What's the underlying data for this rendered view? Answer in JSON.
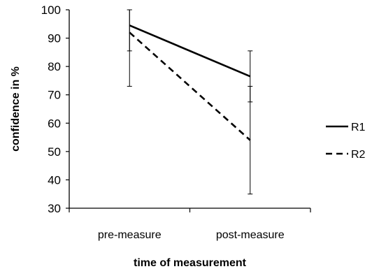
{
  "chart_data": {
    "type": "line",
    "title": "",
    "xlabel": "time of measurement",
    "ylabel": "confidence in %",
    "categories": [
      "pre-measure",
      "post-measure"
    ],
    "ylim": [
      30,
      100
    ],
    "yticks": [
      30,
      40,
      50,
      60,
      70,
      80,
      90,
      100
    ],
    "grid": false,
    "legend_position": "right",
    "series": [
      {
        "name": "R1",
        "values": [
          94.5,
          76.5
        ],
        "error_upper": [
          100,
          85.5
        ],
        "error_lower": [
          85.5,
          67.5
        ],
        "line_style": "solid",
        "color": "#000000"
      },
      {
        "name": "R2",
        "values": [
          92,
          54
        ],
        "error_upper": [
          100,
          73
        ],
        "error_lower": [
          73,
          35
        ],
        "line_style": "dashed",
        "color": "#000000"
      }
    ]
  }
}
